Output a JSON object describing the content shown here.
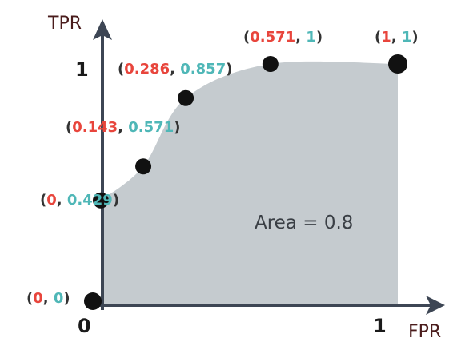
{
  "chart_data": {
    "type": "area",
    "xlabel": "FPR",
    "ylabel": "TPR",
    "xlim": [
      0,
      1
    ],
    "ylim": [
      0,
      1
    ],
    "x_ticks": [
      "0",
      "1"
    ],
    "y_ticks": [
      "1"
    ],
    "grid": false,
    "points": [
      {
        "x": 0,
        "y": 0,
        "x_text": "0",
        "y_text": "0"
      },
      {
        "x": 0,
        "y": 0.429,
        "x_text": "0",
        "y_text": "0.429"
      },
      {
        "x": 0.143,
        "y": 0.571,
        "x_text": "0.143",
        "y_text": "0.571"
      },
      {
        "x": 0.286,
        "y": 0.857,
        "x_text": "0.286",
        "y_text": "0.857"
      },
      {
        "x": 0.571,
        "y": 1,
        "x_text": "0.571",
        "y_text": "1"
      },
      {
        "x": 1,
        "y": 1,
        "x_text": "1",
        "y_text": "1"
      }
    ],
    "annotation": "Area = 0.8",
    "colors": {
      "area_fill": "#c5cbcf",
      "fpr_value": "#e8453c",
      "tpr_value": "#4fb7b7",
      "axis": "#3d4654",
      "point": "#111111"
    }
  }
}
